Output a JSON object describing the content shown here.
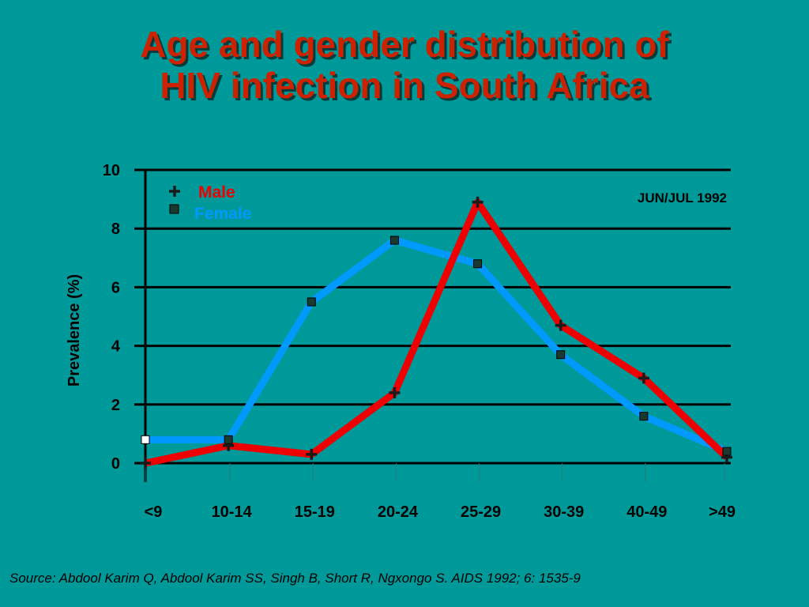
{
  "slide": {
    "title_line1": "Age and gender distribution of",
    "title_line2": "HIV infection in South Africa",
    "source": "Source: Abdool Karim Q, Abdool Karim SS, Singh B, Short R, Ngxongo S.  AIDS 1992; 6: 1535-9"
  },
  "colors": {
    "background": "#009999",
    "title": "#cc2200",
    "male": "#ee0000",
    "female": "#0099ff",
    "axis": "#000000"
  },
  "chart_data": {
    "type": "line",
    "title": "",
    "xlabel": "",
    "ylabel": "Prevalence (%)",
    "annotation": "JUN/JUL 1992",
    "categories": [
      "<9",
      "10-14",
      "15-19",
      "20-24",
      "25-29",
      "30-39",
      "40-49",
      ">49"
    ],
    "yticks": [
      0,
      2,
      4,
      6,
      8,
      10
    ],
    "ylim": [
      0,
      10
    ],
    "grid": true,
    "legend_position": "top-left",
    "series": [
      {
        "name": "Male",
        "marker": "plus",
        "color": "#ee0000",
        "values": [
          0.0,
          0.6,
          0.3,
          2.4,
          8.9,
          4.7,
          2.9,
          0.2
        ]
      },
      {
        "name": "Female",
        "marker": "square",
        "color": "#0099ff",
        "values": [
          0.8,
          0.8,
          5.5,
          7.6,
          6.8,
          3.7,
          1.6,
          0.4
        ]
      }
    ]
  }
}
